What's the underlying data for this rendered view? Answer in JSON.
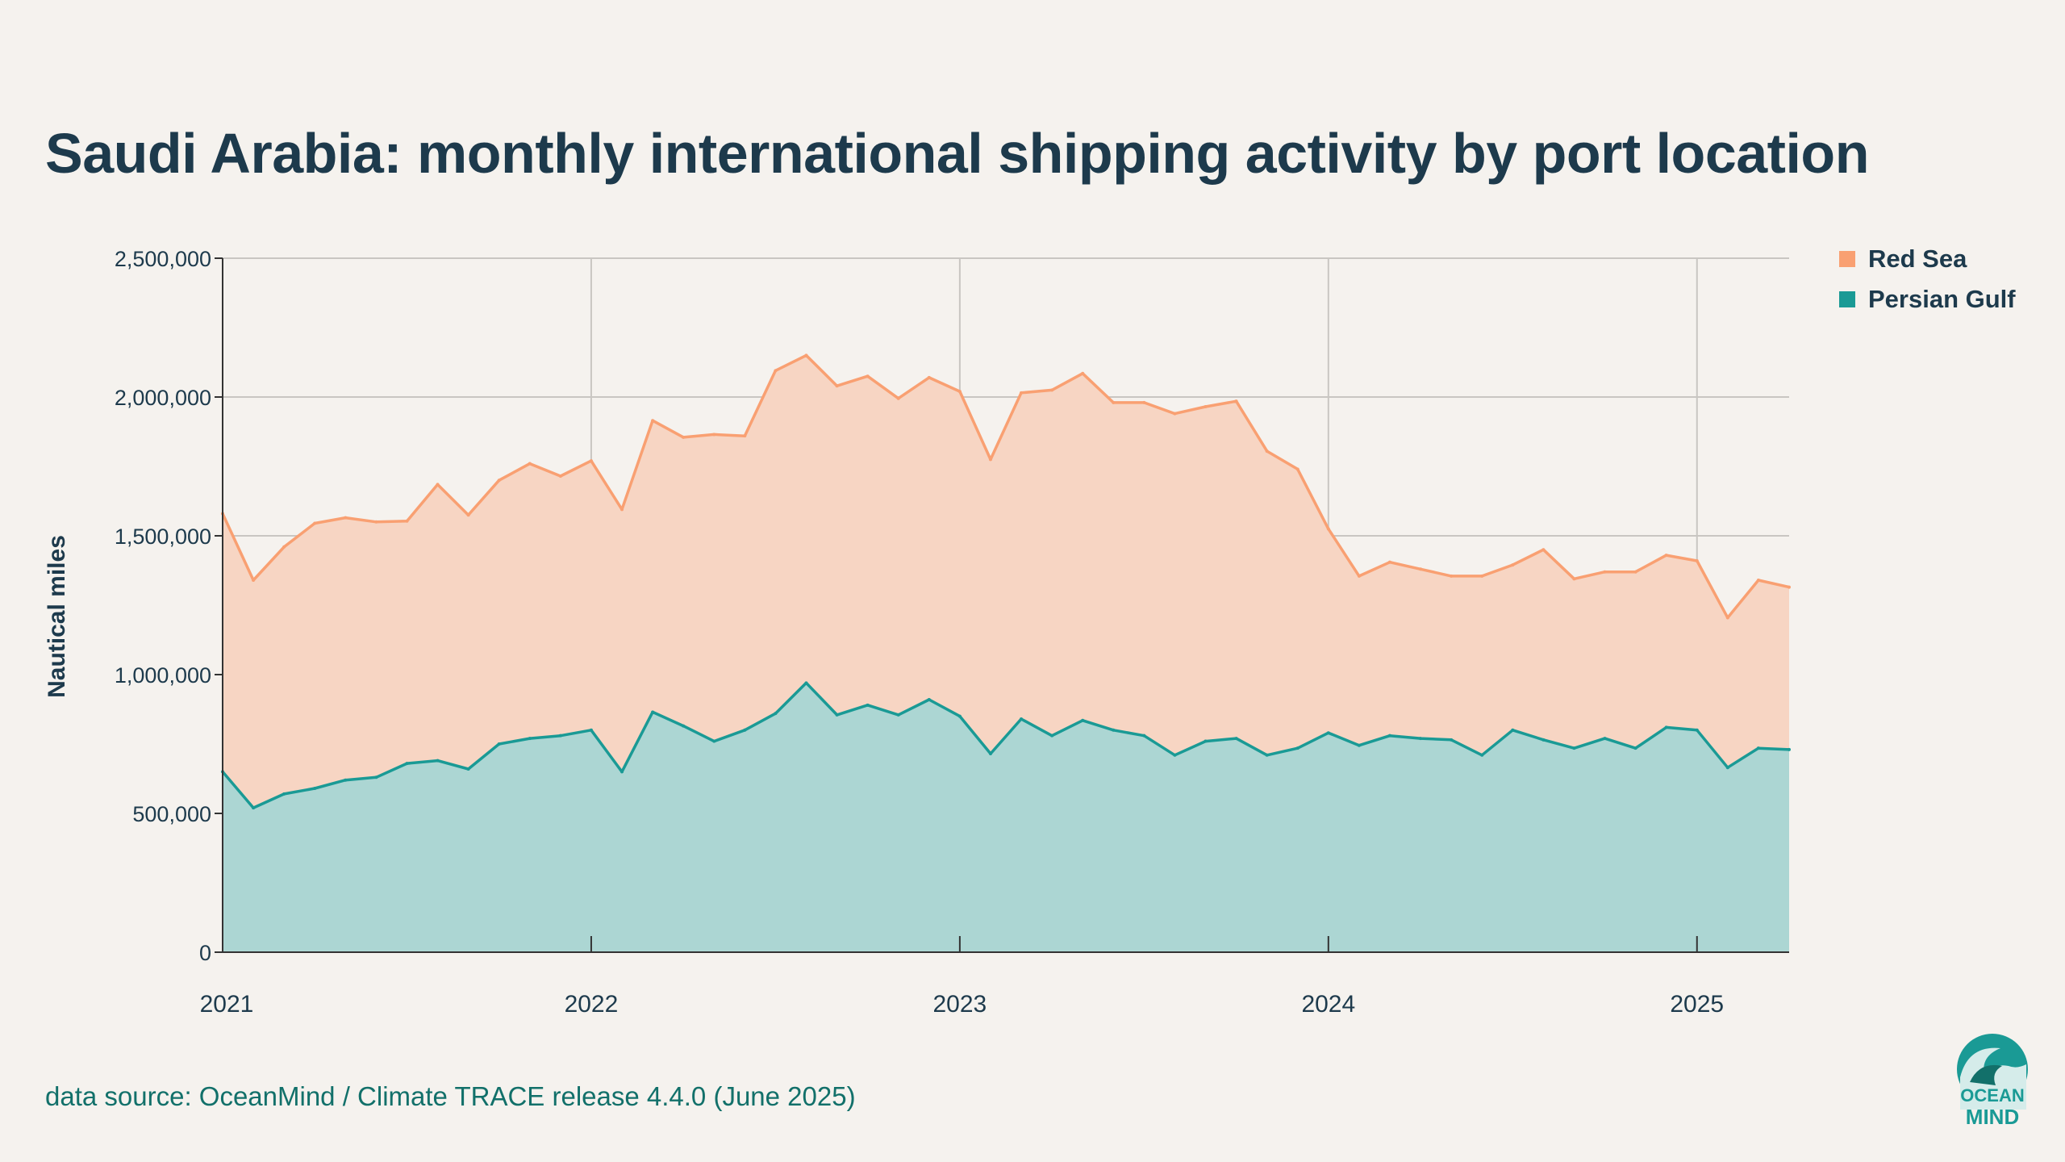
{
  "chart_data": {
    "type": "area",
    "stacked": true,
    "title": "Saudi Arabia: monthly international shipping activity by port location",
    "xlabel": "",
    "ylabel": "Nautical miles",
    "ylim": [
      0,
      2500000
    ],
    "yticks": [
      0,
      500000,
      1000000,
      1500000,
      2000000,
      2500000
    ],
    "ytick_labels": [
      "0",
      "500,000",
      "1,000,000",
      "1,500,000",
      "2,000,000",
      "2,500,000"
    ],
    "x_start": "2021-01",
    "x_labels": [
      "2021",
      "2022",
      "2023",
      "2024",
      "2025"
    ],
    "legend_position": "top-right",
    "grid": true,
    "series": [
      {
        "name": "Red Sea",
        "color": "#f9a072",
        "fill": "#f7d5c3",
        "stack_totals": [
          1580000,
          1340000,
          1460000,
          1545000,
          1565000,
          1550000,
          1553000,
          1685000,
          1575000,
          1700000,
          1760000,
          1715000,
          1770000,
          1595000,
          1915000,
          1855000,
          1865000,
          1860000,
          2095000,
          2150000,
          2040000,
          2075000,
          1995000,
          2070000,
          2020000,
          1775000,
          2015000,
          2025000,
          2085000,
          1980000,
          1980000,
          1940000,
          1965000,
          1985000,
          1805000,
          1740000,
          1525000,
          1355000,
          1405000,
          1380000,
          1355000,
          1355000,
          1395000,
          1450000,
          1345000,
          1370000,
          1370000,
          1430000,
          1410000,
          1205000,
          1340000,
          1315000
        ]
      },
      {
        "name": "Persian Gulf",
        "color": "#1a9a95",
        "fill": "#acd6d3",
        "values": [
          650000,
          520000,
          570000,
          590000,
          620000,
          630000,
          680000,
          690000,
          660000,
          750000,
          770000,
          780000,
          800000,
          650000,
          865000,
          815000,
          760000,
          800000,
          860000,
          970000,
          855000,
          890000,
          855000,
          910000,
          850000,
          715000,
          840000,
          780000,
          835000,
          800000,
          780000,
          710000,
          760000,
          770000,
          710000,
          735000,
          790000,
          745000,
          780000,
          770000,
          765000,
          710000,
          800000,
          765000,
          735000,
          770000,
          735000,
          810000,
          800000,
          665000,
          735000,
          730000
        ]
      }
    ]
  },
  "source": "data source: OceanMind / Climate TRACE release 4.4.0 (June 2025)",
  "logo": {
    "line1": "OCEAN",
    "line2": "MIND"
  }
}
